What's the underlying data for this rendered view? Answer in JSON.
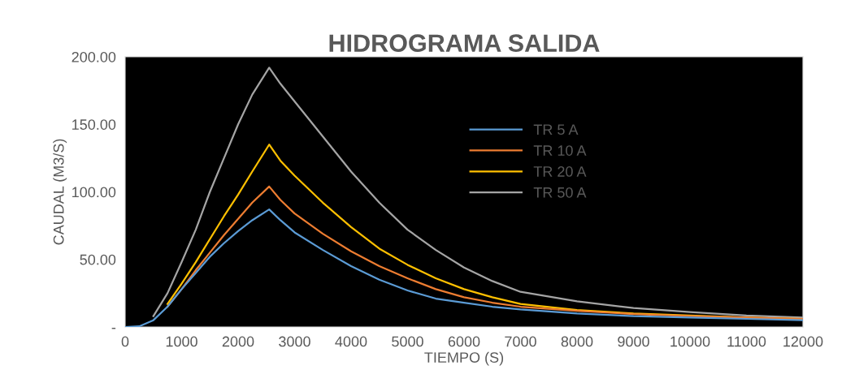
{
  "chart_data": {
    "type": "line",
    "title": "HIDROGRAMA SALIDA",
    "xlabel": "TIEMPO (S)",
    "ylabel": "CAUDAL (M3/S)",
    "x": [
      0,
      250,
      500,
      750,
      1000,
      1250,
      1500,
      1750,
      2000,
      2250,
      2550,
      2750,
      3000,
      3500,
      4000,
      4500,
      5000,
      5500,
      6000,
      6500,
      7000,
      8000,
      9000,
      10000,
      11000,
      12000
    ],
    "series": [
      {
        "name": "TR 5 A",
        "color": "#5b9bd5",
        "values": [
          0,
          0.5,
          5,
          15,
          28,
          40,
          52,
          62,
          71,
          79,
          87,
          79,
          70,
          57,
          45,
          35,
          27,
          21,
          18,
          15,
          13,
          10,
          8,
          7,
          6,
          5
        ]
      },
      {
        "name": "TR 10 A",
        "color": "#ed7d31",
        "values": [
          null,
          null,
          null,
          15,
          28,
          42,
          55,
          68,
          80,
          92,
          104,
          94,
          84,
          69,
          56,
          45,
          36,
          28,
          22,
          18,
          15,
          12,
          9.5,
          8,
          7,
          6
        ]
      },
      {
        "name": "TR 20 A",
        "color": "#ffc000",
        "values": [
          null,
          null,
          null,
          17,
          32,
          48,
          65,
          82,
          98,
          115,
          135,
          123,
          112,
          92,
          74,
          58,
          46,
          36,
          28,
          22,
          17,
          12.5,
          10,
          8.5,
          7,
          6
        ]
      },
      {
        "name": "TR 50 A",
        "color": "#a5a5a5",
        "values": [
          null,
          null,
          8,
          25,
          48,
          72,
          100,
          125,
          150,
          172,
          192,
          180,
          167,
          141,
          115,
          92,
          72,
          57,
          44,
          34,
          26,
          19,
          14,
          11,
          8.5,
          7
        ]
      }
    ],
    "xlim": [
      0,
      12000
    ],
    "xticks": [
      0,
      1000,
      2000,
      3000,
      4000,
      5000,
      6000,
      7000,
      8000,
      9000,
      10000,
      11000,
      12000
    ],
    "ylim": [
      0,
      200
    ],
    "yticks": [
      {
        "value": 0,
        "label": "-"
      },
      {
        "value": 50,
        "label": "50.00"
      },
      {
        "value": 100,
        "label": "100.00"
      },
      {
        "value": 150,
        "label": "150.00"
      },
      {
        "value": 200,
        "label": "200.00"
      }
    ],
    "legend": "top right",
    "marker": "none",
    "line_style": "solid"
  }
}
